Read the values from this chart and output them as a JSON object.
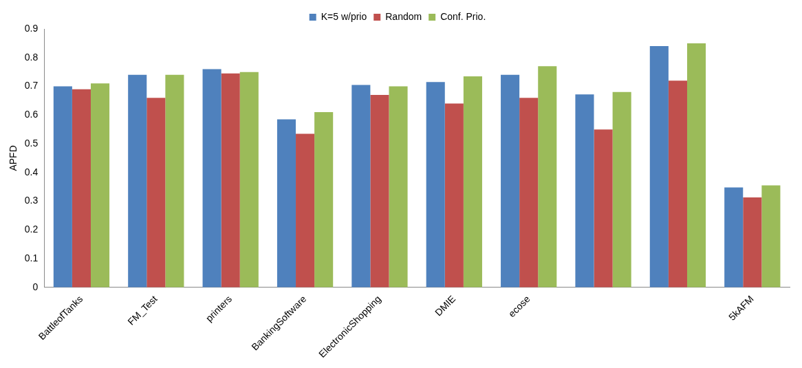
{
  "chart_data": {
    "type": "bar",
    "ylabel": "APFD",
    "categories": [
      "BattleofTanks",
      "FM_Test",
      "printers",
      "BankingSoftware",
      "ElectronicShopping",
      "DMIE",
      "ecose",
      null,
      null,
      "5kAFM"
    ],
    "series": [
      {
        "name": "K=5 w/prio",
        "color": "#4f81bd",
        "values": [
          0.7,
          0.74,
          0.76,
          0.585,
          0.705,
          0.715,
          0.74,
          0.672,
          0.84,
          0.348
        ]
      },
      {
        "name": "Random",
        "color": "#c0504d",
        "values": [
          0.69,
          0.66,
          0.745,
          0.535,
          0.67,
          0.64,
          0.66,
          0.55,
          0.72,
          0.313
        ]
      },
      {
        "name": "Conf. Prio.",
        "color": "#9bbb59",
        "values": [
          0.71,
          0.74,
          0.75,
          0.61,
          0.7,
          0.735,
          0.77,
          0.68,
          0.85,
          0.355
        ]
      }
    ],
    "ylim": [
      0,
      0.9
    ],
    "yticks": [
      0,
      0.1,
      0.2,
      0.3,
      0.4,
      0.5,
      0.6,
      0.7,
      0.8,
      0.9
    ],
    "grid": false,
    "legend": "top"
  }
}
